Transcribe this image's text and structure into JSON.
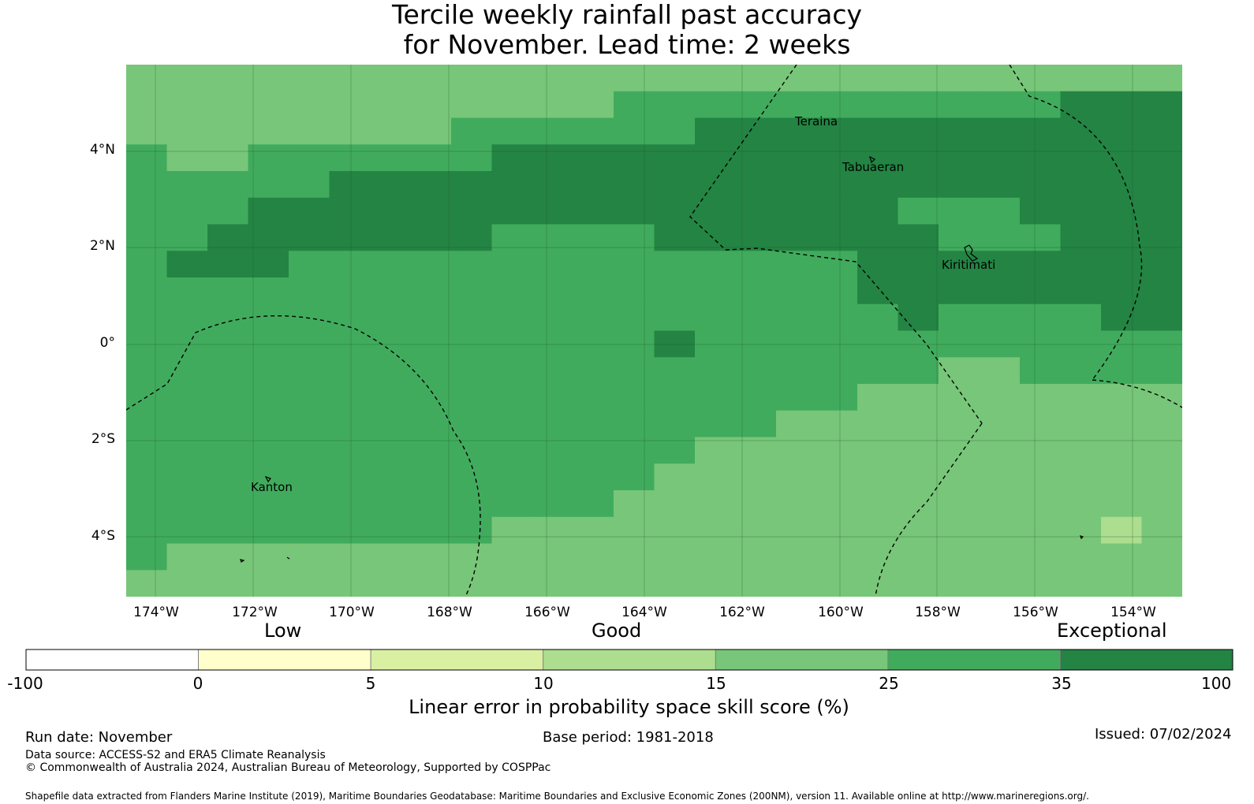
{
  "title": {
    "line1": "Tercile weekly rainfall past accuracy",
    "line2": "for November. Lead time: 2 weeks"
  },
  "map": {
    "lat_labels": [
      "4°N",
      "2°N",
      "0°",
      "2°S",
      "4°S"
    ],
    "lon_labels": [
      "174°W",
      "172°W",
      "170°W",
      "168°W",
      "166°W",
      "164°W",
      "162°W",
      "160°W",
      "158°W",
      "156°W",
      "154°W"
    ],
    "lat_range": [
      -5.1,
      5.8
    ],
    "lon_range": [
      -174.6,
      -153.0
    ],
    "places": [
      "Teraina",
      "Tabuaeran",
      "Kiritimati",
      "Kanton"
    ]
  },
  "colorbar": {
    "categories": [
      "Low",
      "Good",
      "Exceptional"
    ],
    "tick_labels": [
      "-100",
      "0",
      "5",
      "10",
      "15",
      "25",
      "35",
      "100"
    ],
    "colors": [
      "#ffffff",
      "#ffffcc",
      "#d9f0a3",
      "#addd8e",
      "#78c679",
      "#41ab5d",
      "#238443"
    ],
    "label": "Linear error in probability space skill score (%)"
  },
  "footer": {
    "run_date": "Run date: November",
    "base_period": "Base period: 1981-2018",
    "issued": "Issued: 07/02/2024",
    "data_source": "Data source: ACCESS-S2 and ERA5 Climate Reanalysis",
    "copyright": "© Commonwealth of Australia 2024, Australian Bureau of Meteorology, Supported by COSPPac",
    "shapefile": "Shapefile data extracted from Flanders Marine Institute (2019), Maritime Boundaries Geodatabase: Maritime Boundaries and Exclusive Economic Zones (200NM), version 11. Available online at http://www.marineregions.org/."
  }
}
